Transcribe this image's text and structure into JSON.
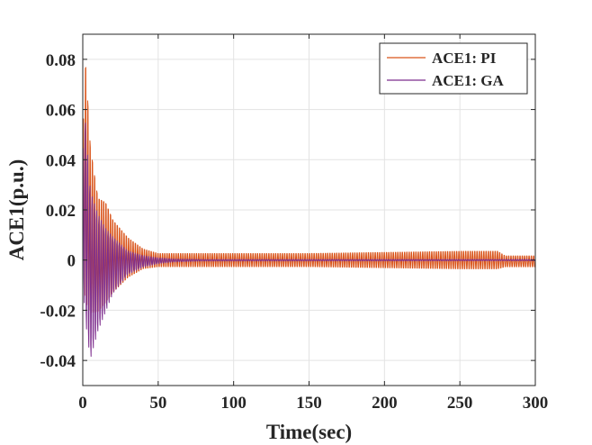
{
  "chart_data": {
    "type": "line",
    "title": "",
    "xlabel": "Time(sec)",
    "ylabel": "ACE1(p.u.)",
    "xlim": [
      0,
      300
    ],
    "ylim": [
      -0.05,
      0.09
    ],
    "grid": true,
    "legend_position": "top-right",
    "x_ticks": [
      "0",
      "50",
      "100",
      "150",
      "200",
      "250",
      "300"
    ],
    "y_ticks": [
      "-0.04",
      "-0.02",
      "0",
      "0.02",
      "0.04",
      "0.06",
      "0.08"
    ],
    "series": [
      {
        "name": "ACE1: PI",
        "color": "#D95319",
        "style": "rapid oscillation (period ~1.5 s) within a decaying envelope, then a sustained small oscillation",
        "envelope": {
          "t": [
            0,
            1,
            2,
            5,
            10,
            15,
            20,
            30,
            40,
            50,
            60,
            80,
            150,
            250,
            275,
            280,
            300
          ],
          "upper": [
            0.04,
            0.082,
            0.084,
            0.05,
            0.028,
            0.026,
            0.018,
            0.01,
            0.005,
            0.003,
            0.003,
            0.003,
            0.003,
            0.004,
            0.004,
            0.002,
            0.002
          ],
          "lower": [
            0.0,
            -0.02,
            -0.024,
            -0.026,
            -0.024,
            -0.02,
            -0.015,
            -0.008,
            -0.004,
            -0.003,
            -0.003,
            -0.003,
            -0.003,
            -0.004,
            -0.004,
            -0.003,
            -0.003
          ]
        }
      },
      {
        "name": "ACE1: GA",
        "color": "#7E2F8E",
        "style": "rapid oscillation (period ~1.5 s) within a decaying envelope, settling to near zero",
        "envelope": {
          "t": [
            0,
            1,
            2,
            5,
            10,
            15,
            20,
            30,
            40,
            50,
            60,
            80,
            300
          ],
          "upper": [
            0.04,
            0.065,
            0.055,
            0.03,
            0.02,
            0.014,
            0.01,
            0.004,
            0.002,
            0.001,
            0.0005,
            0.0003,
            0.0003
          ],
          "lower": [
            0.0,
            -0.02,
            -0.028,
            -0.042,
            -0.03,
            -0.022,
            -0.014,
            -0.006,
            -0.003,
            -0.0015,
            -0.0008,
            -0.0004,
            -0.0003
          ]
        }
      }
    ]
  }
}
